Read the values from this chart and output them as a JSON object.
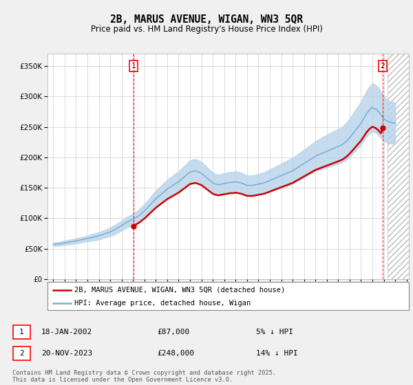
{
  "title": "2B, MARUS AVENUE, WIGAN, WN3 5QR",
  "subtitle": "Price paid vs. HM Land Registry's House Price Index (HPI)",
  "ylim": [
    0,
    370000
  ],
  "xlim_start": 1994.5,
  "xlim_end": 2026.2,
  "hpi_fill_color": "#b8d4ea",
  "hpi_line_color": "#7ab0d4",
  "price_color": "#cc0000",
  "bg_color": "#f0f0f0",
  "plot_bg": "#ffffff",
  "grid_color": "#cccccc",
  "legend_entry1": "2B, MARUS AVENUE, WIGAN, WN3 5QR (detached house)",
  "legend_entry2": "HPI: Average price, detached house, Wigan",
  "footer": "Contains HM Land Registry data © Crown copyright and database right 2025.\nThis data is licensed under the Open Government Licence v3.0.",
  "hpi_years": [
    1995,
    1995.25,
    1995.5,
    1995.75,
    1996,
    1996.25,
    1996.5,
    1996.75,
    1997,
    1997.25,
    1997.5,
    1997.75,
    1998,
    1998.25,
    1998.5,
    1998.75,
    1999,
    1999.25,
    1999.5,
    1999.75,
    2000,
    2000.25,
    2000.5,
    2000.75,
    2001,
    2001.25,
    2001.5,
    2001.75,
    2002,
    2002.25,
    2002.5,
    2002.75,
    2003,
    2003.25,
    2003.5,
    2003.75,
    2004,
    2004.25,
    2004.5,
    2004.75,
    2005,
    2005.25,
    2005.5,
    2005.75,
    2006,
    2006.25,
    2006.5,
    2006.75,
    2007,
    2007.25,
    2007.5,
    2007.75,
    2008,
    2008.25,
    2008.5,
    2008.75,
    2009,
    2009.25,
    2009.5,
    2009.75,
    2010,
    2010.25,
    2010.5,
    2010.75,
    2011,
    2011.25,
    2011.5,
    2011.75,
    2012,
    2012.25,
    2012.5,
    2012.75,
    2013,
    2013.25,
    2013.5,
    2013.75,
    2014,
    2014.25,
    2014.5,
    2014.75,
    2015,
    2015.25,
    2015.5,
    2015.75,
    2016,
    2016.25,
    2016.5,
    2016.75,
    2017,
    2017.25,
    2017.5,
    2017.75,
    2018,
    2018.25,
    2018.5,
    2018.75,
    2019,
    2019.25,
    2019.5,
    2019.75,
    2020,
    2020.25,
    2020.5,
    2020.75,
    2021,
    2021.25,
    2021.5,
    2021.75,
    2022,
    2022.25,
    2022.5,
    2022.75,
    2023,
    2023.25,
    2023.5,
    2023.75,
    2024,
    2024.25,
    2024.5,
    2024.75,
    2025
  ],
  "hpi_values": [
    57000,
    57500,
    58000,
    58800,
    59600,
    60400,
    61200,
    62000,
    62800,
    63800,
    64800,
    65800,
    66800,
    67800,
    68800,
    70000,
    71200,
    72800,
    74400,
    76000,
    77600,
    80000,
    82400,
    85200,
    88000,
    91000,
    94000,
    96000,
    98000,
    101000,
    104000,
    108000,
    112000,
    117000,
    122000,
    127000,
    132000,
    136000,
    140000,
    144000,
    148000,
    151000,
    154000,
    157000,
    160000,
    164000,
    168000,
    172000,
    176000,
    177000,
    178000,
    176000,
    174000,
    170000,
    166000,
    162000,
    158000,
    156000,
    155000,
    156000,
    157000,
    158000,
    159000,
    159000,
    160000,
    159000,
    158000,
    156000,
    154000,
    154000,
    154000,
    155000,
    156000,
    157000,
    158000,
    160000,
    162000,
    164000,
    166000,
    168000,
    170000,
    172000,
    174000,
    176000,
    178000,
    181000,
    184000,
    187000,
    190000,
    193000,
    196000,
    199000,
    202000,
    204000,
    206000,
    208000,
    210000,
    212000,
    214000,
    216000,
    218000,
    220000,
    223000,
    227000,
    232000,
    238000,
    244000,
    250000,
    256000,
    264000,
    272000,
    278000,
    282000,
    280000,
    276000,
    270000,
    264000,
    260000,
    258000,
    257000,
    256000
  ],
  "hpi_upper": [
    60000,
    60500,
    61000,
    62000,
    63000,
    64000,
    65000,
    66000,
    67000,
    68000,
    69200,
    70400,
    71600,
    73000,
    74400,
    75800,
    77200,
    79000,
    80800,
    82800,
    84800,
    87500,
    90200,
    93200,
    96200,
    99500,
    102800,
    105000,
    107200,
    110700,
    114200,
    118700,
    123200,
    128700,
    134200,
    139700,
    145200,
    149700,
    154200,
    158700,
    163200,
    166700,
    170200,
    173700,
    177200,
    181700,
    186200,
    190700,
    195200,
    196200,
    197200,
    195000,
    192800,
    188300,
    183800,
    179300,
    174800,
    172600,
    171400,
    172600,
    173800,
    175000,
    176200,
    176200,
    177400,
    176200,
    175000,
    172600,
    170200,
    170200,
    170200,
    171400,
    172600,
    174000,
    175400,
    177800,
    180200,
    182600,
    185000,
    187400,
    189800,
    192200,
    194600,
    197000,
    199400,
    202700,
    206000,
    209300,
    212600,
    216100,
    219600,
    223100,
    226600,
    229200,
    231800,
    234400,
    237000,
    239400,
    241800,
    244200,
    246600,
    249000,
    252700,
    257700,
    263700,
    270700,
    277700,
    284700,
    291700,
    300700,
    309700,
    316700,
    321700,
    319500,
    315000,
    308000,
    300500,
    295500,
    292500,
    291500,
    289500
  ],
  "hpi_lower": [
    54000,
    54500,
    55000,
    55600,
    56200,
    56800,
    57400,
    58000,
    58600,
    59600,
    60400,
    61200,
    62000,
    62600,
    63200,
    64200,
    65200,
    66600,
    68000,
    69200,
    70400,
    72500,
    74600,
    77200,
    79800,
    82500,
    85200,
    87000,
    88800,
    91300,
    93800,
    97300,
    100800,
    105300,
    109800,
    114300,
    118800,
    122300,
    125800,
    129300,
    132800,
    135300,
    137800,
    140300,
    142800,
    146300,
    149800,
    153300,
    156800,
    157800,
    158800,
    157000,
    155200,
    151700,
    148200,
    144700,
    141200,
    139400,
    138600,
    139400,
    140200,
    141000,
    141800,
    141800,
    142600,
    141800,
    141000,
    139400,
    137800,
    137800,
    137800,
    138600,
    139400,
    140000,
    140600,
    142200,
    143800,
    145400,
    147000,
    148600,
    150200,
    151800,
    153400,
    155000,
    156600,
    159300,
    162000,
    164700,
    167400,
    169900,
    172400,
    174900,
    177400,
    178800,
    180200,
    181600,
    183000,
    184600,
    186200,
    187800,
    189400,
    191000,
    193300,
    196300,
    200300,
    205300,
    210300,
    215300,
    220300,
    227300,
    234300,
    239300,
    242300,
    240500,
    237000,
    232000,
    227500,
    224500,
    223500,
    222500,
    222500
  ],
  "sale1_year": 2002.05,
  "sale1_value": 87000,
  "sale2_year": 2023.9,
  "sale2_value": 248000,
  "hpi_at_sale1": 98000,
  "hpi_at_sale2": 270000,
  "vline1_x": 2002.05,
  "vline2_x": 2023.9,
  "hatch_start": 2024.33,
  "hatch_end": 2026.2
}
